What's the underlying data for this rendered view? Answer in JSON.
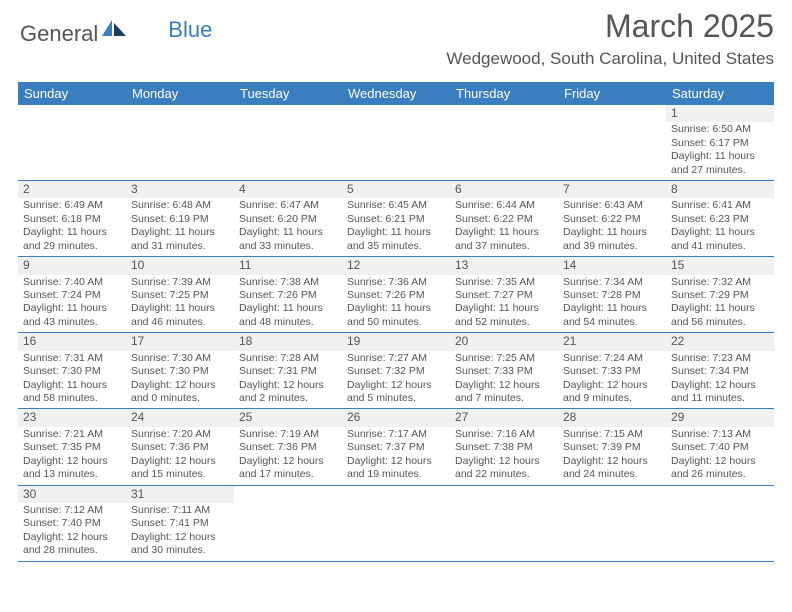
{
  "logo": {
    "part1": "General",
    "part2": "Blue"
  },
  "title": "March 2025",
  "location": "Wedgewood, South Carolina, United States",
  "colors": {
    "accent": "#3a7ebf",
    "text": "#555555",
    "bg": "#ffffff",
    "daynum_bg": "#eef0f1"
  },
  "day_headers": [
    "Sunday",
    "Monday",
    "Tuesday",
    "Wednesday",
    "Thursday",
    "Friday",
    "Saturday"
  ],
  "weeks": [
    [
      {
        "n": "",
        "sr": "",
        "ss": "",
        "dl": ""
      },
      {
        "n": "",
        "sr": "",
        "ss": "",
        "dl": ""
      },
      {
        "n": "",
        "sr": "",
        "ss": "",
        "dl": ""
      },
      {
        "n": "",
        "sr": "",
        "ss": "",
        "dl": ""
      },
      {
        "n": "",
        "sr": "",
        "ss": "",
        "dl": ""
      },
      {
        "n": "",
        "sr": "",
        "ss": "",
        "dl": ""
      },
      {
        "n": "1",
        "sr": "Sunrise: 6:50 AM",
        "ss": "Sunset: 6:17 PM",
        "dl": "Daylight: 11 hours and 27 minutes."
      }
    ],
    [
      {
        "n": "2",
        "sr": "Sunrise: 6:49 AM",
        "ss": "Sunset: 6:18 PM",
        "dl": "Daylight: 11 hours and 29 minutes."
      },
      {
        "n": "3",
        "sr": "Sunrise: 6:48 AM",
        "ss": "Sunset: 6:19 PM",
        "dl": "Daylight: 11 hours and 31 minutes."
      },
      {
        "n": "4",
        "sr": "Sunrise: 6:47 AM",
        "ss": "Sunset: 6:20 PM",
        "dl": "Daylight: 11 hours and 33 minutes."
      },
      {
        "n": "5",
        "sr": "Sunrise: 6:45 AM",
        "ss": "Sunset: 6:21 PM",
        "dl": "Daylight: 11 hours and 35 minutes."
      },
      {
        "n": "6",
        "sr": "Sunrise: 6:44 AM",
        "ss": "Sunset: 6:22 PM",
        "dl": "Daylight: 11 hours and 37 minutes."
      },
      {
        "n": "7",
        "sr": "Sunrise: 6:43 AM",
        "ss": "Sunset: 6:22 PM",
        "dl": "Daylight: 11 hours and 39 minutes."
      },
      {
        "n": "8",
        "sr": "Sunrise: 6:41 AM",
        "ss": "Sunset: 6:23 PM",
        "dl": "Daylight: 11 hours and 41 minutes."
      }
    ],
    [
      {
        "n": "9",
        "sr": "Sunrise: 7:40 AM",
        "ss": "Sunset: 7:24 PM",
        "dl": "Daylight: 11 hours and 43 minutes."
      },
      {
        "n": "10",
        "sr": "Sunrise: 7:39 AM",
        "ss": "Sunset: 7:25 PM",
        "dl": "Daylight: 11 hours and 46 minutes."
      },
      {
        "n": "11",
        "sr": "Sunrise: 7:38 AM",
        "ss": "Sunset: 7:26 PM",
        "dl": "Daylight: 11 hours and 48 minutes."
      },
      {
        "n": "12",
        "sr": "Sunrise: 7:36 AM",
        "ss": "Sunset: 7:26 PM",
        "dl": "Daylight: 11 hours and 50 minutes."
      },
      {
        "n": "13",
        "sr": "Sunrise: 7:35 AM",
        "ss": "Sunset: 7:27 PM",
        "dl": "Daylight: 11 hours and 52 minutes."
      },
      {
        "n": "14",
        "sr": "Sunrise: 7:34 AM",
        "ss": "Sunset: 7:28 PM",
        "dl": "Daylight: 11 hours and 54 minutes."
      },
      {
        "n": "15",
        "sr": "Sunrise: 7:32 AM",
        "ss": "Sunset: 7:29 PM",
        "dl": "Daylight: 11 hours and 56 minutes."
      }
    ],
    [
      {
        "n": "16",
        "sr": "Sunrise: 7:31 AM",
        "ss": "Sunset: 7:30 PM",
        "dl": "Daylight: 11 hours and 58 minutes."
      },
      {
        "n": "17",
        "sr": "Sunrise: 7:30 AM",
        "ss": "Sunset: 7:30 PM",
        "dl": "Daylight: 12 hours and 0 minutes."
      },
      {
        "n": "18",
        "sr": "Sunrise: 7:28 AM",
        "ss": "Sunset: 7:31 PM",
        "dl": "Daylight: 12 hours and 2 minutes."
      },
      {
        "n": "19",
        "sr": "Sunrise: 7:27 AM",
        "ss": "Sunset: 7:32 PM",
        "dl": "Daylight: 12 hours and 5 minutes."
      },
      {
        "n": "20",
        "sr": "Sunrise: 7:25 AM",
        "ss": "Sunset: 7:33 PM",
        "dl": "Daylight: 12 hours and 7 minutes."
      },
      {
        "n": "21",
        "sr": "Sunrise: 7:24 AM",
        "ss": "Sunset: 7:33 PM",
        "dl": "Daylight: 12 hours and 9 minutes."
      },
      {
        "n": "22",
        "sr": "Sunrise: 7:23 AM",
        "ss": "Sunset: 7:34 PM",
        "dl": "Daylight: 12 hours and 11 minutes."
      }
    ],
    [
      {
        "n": "23",
        "sr": "Sunrise: 7:21 AM",
        "ss": "Sunset: 7:35 PM",
        "dl": "Daylight: 12 hours and 13 minutes."
      },
      {
        "n": "24",
        "sr": "Sunrise: 7:20 AM",
        "ss": "Sunset: 7:36 PM",
        "dl": "Daylight: 12 hours and 15 minutes."
      },
      {
        "n": "25",
        "sr": "Sunrise: 7:19 AM",
        "ss": "Sunset: 7:36 PM",
        "dl": "Daylight: 12 hours and 17 minutes."
      },
      {
        "n": "26",
        "sr": "Sunrise: 7:17 AM",
        "ss": "Sunset: 7:37 PM",
        "dl": "Daylight: 12 hours and 19 minutes."
      },
      {
        "n": "27",
        "sr": "Sunrise: 7:16 AM",
        "ss": "Sunset: 7:38 PM",
        "dl": "Daylight: 12 hours and 22 minutes."
      },
      {
        "n": "28",
        "sr": "Sunrise: 7:15 AM",
        "ss": "Sunset: 7:39 PM",
        "dl": "Daylight: 12 hours and 24 minutes."
      },
      {
        "n": "29",
        "sr": "Sunrise: 7:13 AM",
        "ss": "Sunset: 7:40 PM",
        "dl": "Daylight: 12 hours and 26 minutes."
      }
    ],
    [
      {
        "n": "30",
        "sr": "Sunrise: 7:12 AM",
        "ss": "Sunset: 7:40 PM",
        "dl": "Daylight: 12 hours and 28 minutes."
      },
      {
        "n": "31",
        "sr": "Sunrise: 7:11 AM",
        "ss": "Sunset: 7:41 PM",
        "dl": "Daylight: 12 hours and 30 minutes."
      },
      {
        "n": "",
        "sr": "",
        "ss": "",
        "dl": ""
      },
      {
        "n": "",
        "sr": "",
        "ss": "",
        "dl": ""
      },
      {
        "n": "",
        "sr": "",
        "ss": "",
        "dl": ""
      },
      {
        "n": "",
        "sr": "",
        "ss": "",
        "dl": ""
      },
      {
        "n": "",
        "sr": "",
        "ss": "",
        "dl": ""
      }
    ]
  ]
}
